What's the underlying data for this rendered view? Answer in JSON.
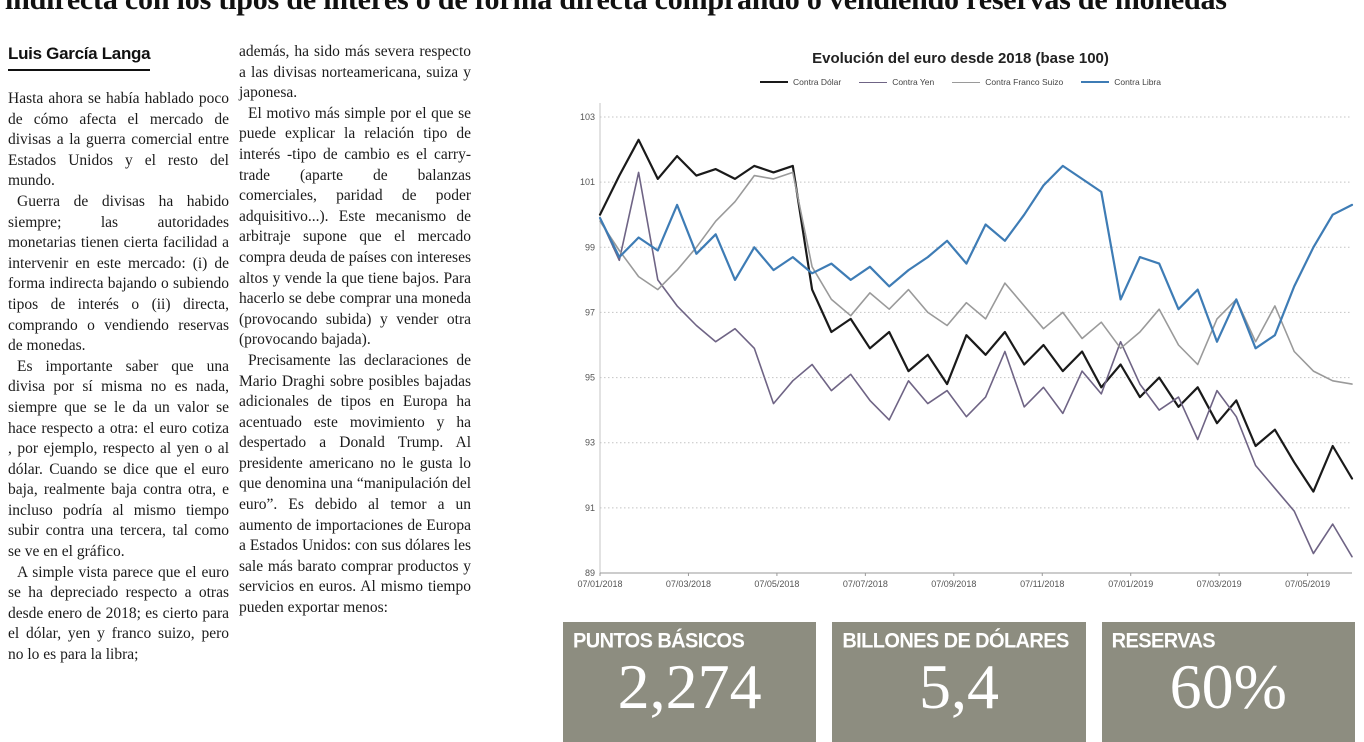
{
  "headline": "indirecta con los tipos de interés o de forma directa comprando o vendiendo reservas de monedas",
  "byline": "Luis García Langa",
  "article": {
    "col1_paragraphs": [
      "Hasta ahora se había hablado poco de cómo afecta el mercado de divisas a la guerra comercial entre Estados Unidos y el resto del mundo.",
      "Guerra de divisas ha habido siempre; las autoridades monetarias tienen cierta facilidad a intervenir en este mercado: (i) de forma indirecta bajando o subiendo tipos de interés o (ii) directa, comprando o vendiendo reservas de monedas.",
      "Es importante saber que una divisa por sí misma no es nada, siempre que se le da un valor se hace respecto a otra: el euro cotiza , por ejemplo, respecto al yen o al dólar. Cuando se dice que el euro baja, realmente baja contra otra, e incluso podría al mismo tiempo subir contra una tercera, tal como se ve en el gráfico.",
      "A simple vista parece que el euro se ha depreciado respecto a otras desde enero de 2018; es cierto para el dólar, yen y franco suizo, pero no lo es para la libra;"
    ],
    "col2_paragraphs": [
      "además, ha sido más severa respecto a las divisas norteamericana, suiza y japonesa.",
      "El motivo más simple por el que se puede explicar la relación tipo de interés -tipo de cambio es el carry-trade (aparte de balanzas comerciales, paridad de poder adquisitivo...). Este mecanismo de arbitraje supone que el mercado compra deuda de países con intereses altos y vende la que tiene bajos. Para hacerlo se debe comprar una moneda (provocando subida) y vender otra (provocando bajada).",
      "Precisamente las declaraciones de Mario Draghi sobre posibles bajadas adicionales de tipos en Europa ha acentuado este movimiento y ha despertado a Donald Trump. Al presidente americano no le gusta lo que denomina una “manipulación del euro”. Es debido al temor a un aumento de importaciones de Europa a Estados Unidos: con sus dólares les sale más barato comprar productos y servicios en euros. Al mismo tiempo pueden exportar menos:"
    ]
  },
  "chart_data": {
    "type": "line",
    "title": "Evolución del euro desde 2018 (base 100)",
    "xlabel": "",
    "ylabel": "",
    "ylim": [
      89,
      103
    ],
    "y_ticks": [
      103,
      101,
      99,
      97,
      95,
      93,
      91,
      89
    ],
    "x_tick_labels": [
      "07/01/2018",
      "07/03/2018",
      "07/05/2018",
      "07/07/2018",
      "07/09/2018",
      "07/11/2018",
      "07/01/2019",
      "07/03/2019",
      "07/05/2019"
    ],
    "grid": true,
    "legend_position": "top",
    "series": [
      {
        "name": "Contra Dólar",
        "color": "#1a1a1a",
        "width": 2.2,
        "values": [
          100.0,
          101.2,
          102.3,
          101.1,
          101.8,
          101.2,
          101.4,
          101.1,
          101.5,
          101.3,
          101.5,
          97.7,
          96.4,
          96.8,
          95.9,
          96.4,
          95.2,
          95.7,
          94.8,
          96.3,
          95.7,
          96.4,
          95.4,
          96.0,
          95.2,
          95.8,
          94.7,
          95.4,
          94.4,
          95.0,
          94.1,
          94.7,
          93.6,
          94.3,
          92.9,
          93.4,
          92.4,
          91.5,
          92.9,
          91.9
        ]
      },
      {
        "name": "Contra Yen",
        "color": "#6f6485",
        "width": 1.6,
        "values": [
          99.9,
          98.6,
          101.3,
          98.0,
          97.2,
          96.6,
          96.1,
          96.5,
          95.9,
          94.2,
          94.9,
          95.4,
          94.6,
          95.1,
          94.3,
          93.7,
          94.9,
          94.2,
          94.6,
          93.8,
          94.4,
          95.8,
          94.1,
          94.7,
          93.9,
          95.2,
          94.5,
          96.1,
          94.8,
          94.0,
          94.4,
          93.1,
          94.6,
          93.8,
          92.3,
          91.6,
          90.9,
          89.6,
          90.5,
          89.5
        ]
      },
      {
        "name": "Contra Franco Suizo",
        "color": "#9a9a9a",
        "width": 1.6,
        "values": [
          99.8,
          98.9,
          98.1,
          97.7,
          98.3,
          99.0,
          99.8,
          100.4,
          101.2,
          101.1,
          101.3,
          98.4,
          97.4,
          96.9,
          97.6,
          97.1,
          97.7,
          97.0,
          96.6,
          97.3,
          96.8,
          97.9,
          97.2,
          96.5,
          97.0,
          96.2,
          96.7,
          95.9,
          96.4,
          97.1,
          96.0,
          95.4,
          96.8,
          97.4,
          96.1,
          97.2,
          95.8,
          95.2,
          94.9,
          94.8
        ]
      },
      {
        "name": "Contra Libra",
        "color": "#3e7cb5",
        "width": 2.2,
        "values": [
          99.9,
          98.7,
          99.3,
          98.9,
          100.3,
          98.8,
          99.4,
          98.0,
          99.0,
          98.3,
          98.7,
          98.2,
          98.5,
          98.0,
          98.4,
          97.8,
          98.3,
          98.7,
          99.2,
          98.5,
          99.7,
          99.2,
          100.0,
          100.9,
          101.5,
          101.1,
          100.7,
          97.4,
          98.7,
          98.5,
          97.1,
          97.7,
          96.1,
          97.4,
          95.9,
          96.3,
          97.8,
          99.0,
          100.0,
          100.3
        ]
      }
    ]
  },
  "stats": [
    {
      "label": "PUNTOS BÁSICOS",
      "value": "2,274"
    },
    {
      "label": "BILLONES DE DÓLARES",
      "value": "5,4"
    },
    {
      "label": "RESERVAS",
      "value": "60%"
    }
  ],
  "colors": {
    "stat_box_bg": "#8d8d80",
    "stat_text": "#ffffff",
    "grid_line": "#c4c4c4",
    "axis_line": "#999999"
  }
}
